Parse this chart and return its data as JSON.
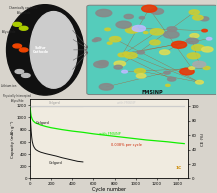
{
  "fig_width": 2.14,
  "fig_height": 1.89,
  "dpi": 100,
  "bg_color": "#d8d4cc",
  "top_panel_bg": "#d8d4cc",
  "chart_bg": "#f0ebe0",
  "celgard_capacity_x": [
    0,
    5,
    10,
    15,
    20,
    30,
    40,
    50,
    60,
    80,
    100,
    150,
    200,
    250,
    300,
    350,
    400,
    450,
    500
  ],
  "celgard_capacity_y": [
    1100,
    920,
    780,
    680,
    610,
    540,
    505,
    480,
    465,
    445,
    430,
    405,
    385,
    365,
    340,
    320,
    300,
    280,
    270
  ],
  "fmsinp_capacity_x": [
    0,
    5,
    10,
    20,
    30,
    50,
    80,
    100,
    150,
    200,
    300,
    400,
    500,
    600,
    700,
    800,
    900,
    1000,
    1100,
    1200,
    1300,
    1400,
    1460
  ],
  "fmsinp_capacity_y": [
    1180,
    1080,
    1020,
    970,
    940,
    910,
    890,
    875,
    850,
    830,
    800,
    775,
    755,
    730,
    710,
    690,
    670,
    650,
    630,
    615,
    600,
    580,
    570
  ],
  "celgard_ce_x": [
    0,
    50,
    100,
    200,
    300,
    400,
    500
  ],
  "celgard_ce_y": [
    99.2,
    99.5,
    99.5,
    99.5,
    99.5,
    99.5,
    99.5
  ],
  "fmsinp_ce_x": [
    0,
    200,
    500,
    800,
    1000,
    1200,
    1460
  ],
  "fmsinp_ce_y": [
    99.9,
    99.9,
    99.9,
    99.9,
    99.9,
    99.9,
    99.9
  ],
  "celgard_color": "#111111",
  "fmsinp_color": "#11ee00",
  "ce_celgard_color": "#999999",
  "ce_fmsinp_color": "#cccccc",
  "annotation_color": "#cc2200",
  "rate_color": "#cc8800",
  "xlim": [
    0,
    1500
  ],
  "ylim_left": [
    0,
    1300
  ],
  "ylim_right": [
    0,
    110
  ],
  "xticks": [
    0,
    200,
    400,
    600,
    800,
    1000,
    1200,
    1400
  ],
  "yticks_left": [
    0,
    200,
    400,
    600,
    800,
    1000,
    1200
  ],
  "yticks_right": [
    0,
    20,
    40,
    60,
    80,
    100
  ],
  "xlabel": "Cycle number",
  "disk_color": "#111111",
  "disk_inner_color": "#cccccc",
  "fmsinp_box_color": "#55ccbb",
  "mol_colors": [
    "#cccc33",
    "#888888",
    "#ee3300",
    "#bbbbff",
    "#cccc33",
    "#888888",
    "#ee3300",
    "#aaaaaa",
    "#cccc33",
    "#dddd55"
  ],
  "seed": 42
}
